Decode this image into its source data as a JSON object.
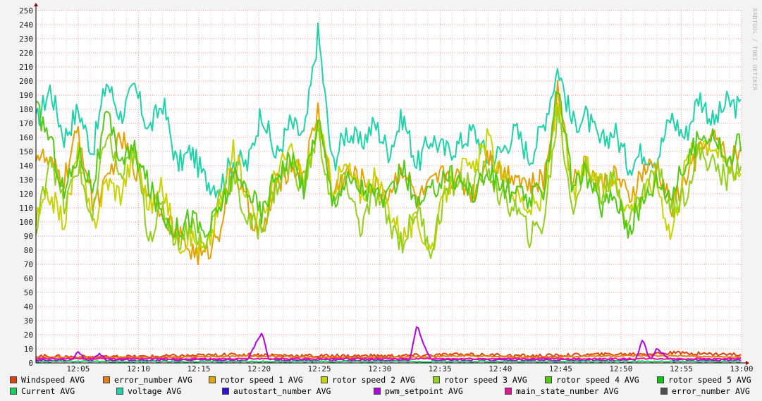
{
  "watermark": "RRDTOOL / TOBI OETIKER",
  "chart_data": {
    "type": "line",
    "ylim": [
      0,
      250
    ],
    "y_ticks": [
      0,
      10,
      20,
      30,
      40,
      50,
      60,
      70,
      80,
      90,
      100,
      110,
      120,
      130,
      140,
      150,
      160,
      170,
      180,
      190,
      200,
      210,
      220,
      230,
      240,
      250
    ],
    "x_range": [
      "12:01:30",
      "13:00:00"
    ],
    "x_ticks": [
      "12:05",
      "12:10",
      "12:15",
      "12:20",
      "12:25",
      "12:30",
      "12:35",
      "12:40",
      "12:45",
      "12:50",
      "12:55",
      "13:00"
    ],
    "grid": true,
    "legend_position": "bottom",
    "series": [
      {
        "name": "voltage AVG",
        "color": "#1ed2a9",
        "x": [
          0,
          2,
          4,
          6,
          8,
          10,
          12,
          14,
          16,
          18,
          20,
          22,
          24,
          26,
          28,
          30,
          32,
          34,
          36,
          38,
          40,
          42,
          44,
          46,
          48,
          50,
          52,
          54,
          56,
          58,
          60,
          62,
          64,
          66,
          68,
          70,
          72,
          74,
          76,
          78,
          80,
          82,
          84,
          86,
          88,
          90,
          92,
          94,
          96,
          98,
          100
        ],
        "y": [
          170,
          195,
          160,
          180,
          150,
          200,
          175,
          195,
          165,
          185,
          140,
          150,
          130,
          125,
          145,
          140,
          180,
          145,
          170,
          160,
          235,
          140,
          165,
          155,
          170,
          150,
          175,
          140,
          160,
          150,
          155,
          165,
          145,
          150,
          165,
          145,
          170,
          210,
          170,
          175,
          155,
          165,
          140,
          150,
          145,
          175,
          160,
          190,
          170,
          185,
          180
        ]
      },
      {
        "name": "rotor speed 1 AVG",
        "color": "#e5a100",
        "x": [
          0,
          2,
          4,
          6,
          8,
          10,
          12,
          14,
          16,
          18,
          20,
          22,
          24,
          26,
          28,
          30,
          32,
          34,
          36,
          38,
          40,
          42,
          44,
          46,
          48,
          50,
          52,
          54,
          56,
          58,
          60,
          62,
          64,
          66,
          68,
          70,
          72,
          74,
          76,
          78,
          80,
          82,
          84,
          86,
          88,
          90,
          92,
          94,
          96,
          98,
          100
        ],
        "y": [
          150,
          140,
          130,
          165,
          115,
          125,
          160,
          140,
          120,
          110,
          90,
          80,
          75,
          95,
          140,
          110,
          90,
          125,
          140,
          135,
          180,
          120,
          135,
          130,
          125,
          120,
          140,
          115,
          125,
          135,
          130,
          120,
          150,
          135,
          135,
          125,
          130,
          195,
          130,
          140,
          125,
          135,
          115,
          135,
          140,
          110,
          130,
          150,
          160,
          145,
          150
        ]
      },
      {
        "name": "rotor speed 2 AVG",
        "color": "#c9d300",
        "x": [
          0,
          2,
          4,
          6,
          8,
          10,
          12,
          14,
          16,
          18,
          20,
          22,
          24,
          26,
          28,
          30,
          32,
          34,
          36,
          38,
          40,
          42,
          44,
          46,
          48,
          50,
          52,
          54,
          56,
          58,
          60,
          62,
          64,
          66,
          68,
          70,
          72,
          74,
          76,
          78,
          80,
          82,
          84,
          86,
          88,
          90,
          92,
          94,
          96,
          98,
          100
        ],
        "y": [
          100,
          120,
          100,
          150,
          95,
          130,
          120,
          150,
          110,
          125,
          85,
          90,
          78,
          110,
          150,
          120,
          100,
          135,
          150,
          130,
          170,
          125,
          140,
          120,
          130,
          110,
          90,
          100,
          80,
          120,
          140,
          135,
          160,
          130,
          120,
          110,
          115,
          190,
          120,
          140,
          125,
          130,
          110,
          120,
          130,
          90,
          140,
          160,
          155,
          140,
          135
        ]
      },
      {
        "name": "rotor speed 3 AVG",
        "color": "#93cf1f",
        "x": [
          0,
          2,
          4,
          6,
          8,
          10,
          12,
          14,
          16,
          18,
          20,
          22,
          24,
          26,
          28,
          30,
          32,
          34,
          36,
          38,
          40,
          42,
          44,
          46,
          48,
          50,
          52,
          54,
          56,
          58,
          60,
          62,
          64,
          66,
          68,
          70,
          72,
          74,
          76,
          78,
          80,
          82,
          84,
          86,
          88,
          90,
          92,
          94,
          96,
          98,
          100
        ],
        "y": [
          90,
          150,
          110,
          140,
          100,
          165,
          130,
          150,
          90,
          110,
          85,
          100,
          80,
          120,
          130,
          100,
          95,
          125,
          140,
          125,
          165,
          110,
          130,
          95,
          120,
          100,
          85,
          110,
          80,
          120,
          130,
          125,
          140,
          115,
          110,
          90,
          100,
          180,
          110,
          140,
          120,
          130,
          100,
          120,
          140,
          110,
          120,
          150,
          140,
          130,
          145
        ]
      },
      {
        "name": "rotor speed 4 AVG",
        "color": "#52c915",
        "x": [
          0,
          2,
          4,
          6,
          8,
          10,
          12,
          14,
          16,
          18,
          20,
          22,
          24,
          26,
          28,
          30,
          32,
          34,
          36,
          38,
          40,
          42,
          44,
          46,
          48,
          50,
          52,
          54,
          56,
          58,
          60,
          62,
          64,
          66,
          68,
          70,
          72,
          74,
          76,
          78,
          80,
          82,
          84,
          86,
          88,
          90,
          92,
          94,
          96,
          98,
          100
        ],
        "y": [
          180,
          160,
          120,
          150,
          125,
          175,
          145,
          150,
          125,
          105,
          95,
          105,
          90,
          110,
          130,
          125,
          105,
          135,
          145,
          125,
          175,
          115,
          130,
          125,
          120,
          115,
          140,
          110,
          120,
          135,
          130,
          120,
          135,
          125,
          120,
          115,
          125,
          200,
          125,
          135,
          110,
          120,
          95,
          115,
          130,
          120,
          140,
          160,
          165,
          140,
          160
        ]
      }
    ],
    "lower_series": [
      {
        "name": "Windspeed AVG",
        "color": "#e0420a",
        "x": [
          0,
          10,
          20,
          30,
          40,
          50,
          60,
          70,
          80,
          90,
          100
        ],
        "y": [
          5,
          4,
          5,
          6,
          5,
          5,
          6,
          5,
          6,
          7,
          6
        ]
      },
      {
        "name": "error_number AVG",
        "color": "#e37d14",
        "x": [
          0,
          10,
          20,
          30,
          40,
          50,
          60,
          70,
          80,
          90,
          100
        ],
        "y": [
          4,
          4,
          4,
          5,
          4,
          4,
          5,
          4,
          5,
          5,
          4
        ]
      },
      {
        "name": "pwm_setpoint AVG",
        "color": "#b400e6",
        "x": [
          0,
          5,
          6,
          7,
          8,
          9,
          10,
          20,
          30,
          31,
          32,
          33,
          40,
          45,
          53,
          54,
          55,
          56,
          60,
          70,
          80,
          85,
          86,
          87,
          88,
          90,
          100
        ],
        "y": [
          2,
          2,
          8,
          2,
          2,
          7,
          2,
          2,
          2,
          12,
          22,
          2,
          2,
          2,
          2,
          27,
          12,
          2,
          2,
          2,
          2,
          2,
          17,
          2,
          10,
          2,
          2
        ]
      },
      {
        "name": "main_state_number AVG",
        "color": "#e6139a",
        "x": [
          0,
          100
        ],
        "y": [
          3,
          3
        ]
      },
      {
        "name": "Current AVG",
        "color": "#12d261",
        "x": [
          0,
          100
        ],
        "y": [
          1,
          1
        ]
      }
    ]
  },
  "legend": [
    {
      "label": "Windspeed AVG",
      "color": "#e0420a"
    },
    {
      "label": "error_number AVG",
      "color": "#e37d14"
    },
    {
      "label": "rotor speed 1 AVG",
      "color": "#e5a100"
    },
    {
      "label": "rotor speed 2 AVG",
      "color": "#c9d300"
    },
    {
      "label": "rotor speed 3 AVG",
      "color": "#93cf1f"
    },
    {
      "label": "rotor speed 4 AVG",
      "color": "#52c915"
    },
    {
      "label": "rotor speed 5 AVG",
      "color": "#11c40f"
    },
    {
      "label": "Current AVG",
      "color": "#12d261"
    },
    {
      "label": "voltage AVG",
      "color": "#1ed2a9"
    },
    {
      "label": "autostart_number AVG",
      "color": "#2b12d4"
    },
    {
      "label": "pwm_setpoint AVG",
      "color": "#b400e6"
    },
    {
      "label": "main_state_number AVG",
      "color": "#e6139a"
    },
    {
      "label": "error_number AVG",
      "color": "#505050"
    }
  ]
}
